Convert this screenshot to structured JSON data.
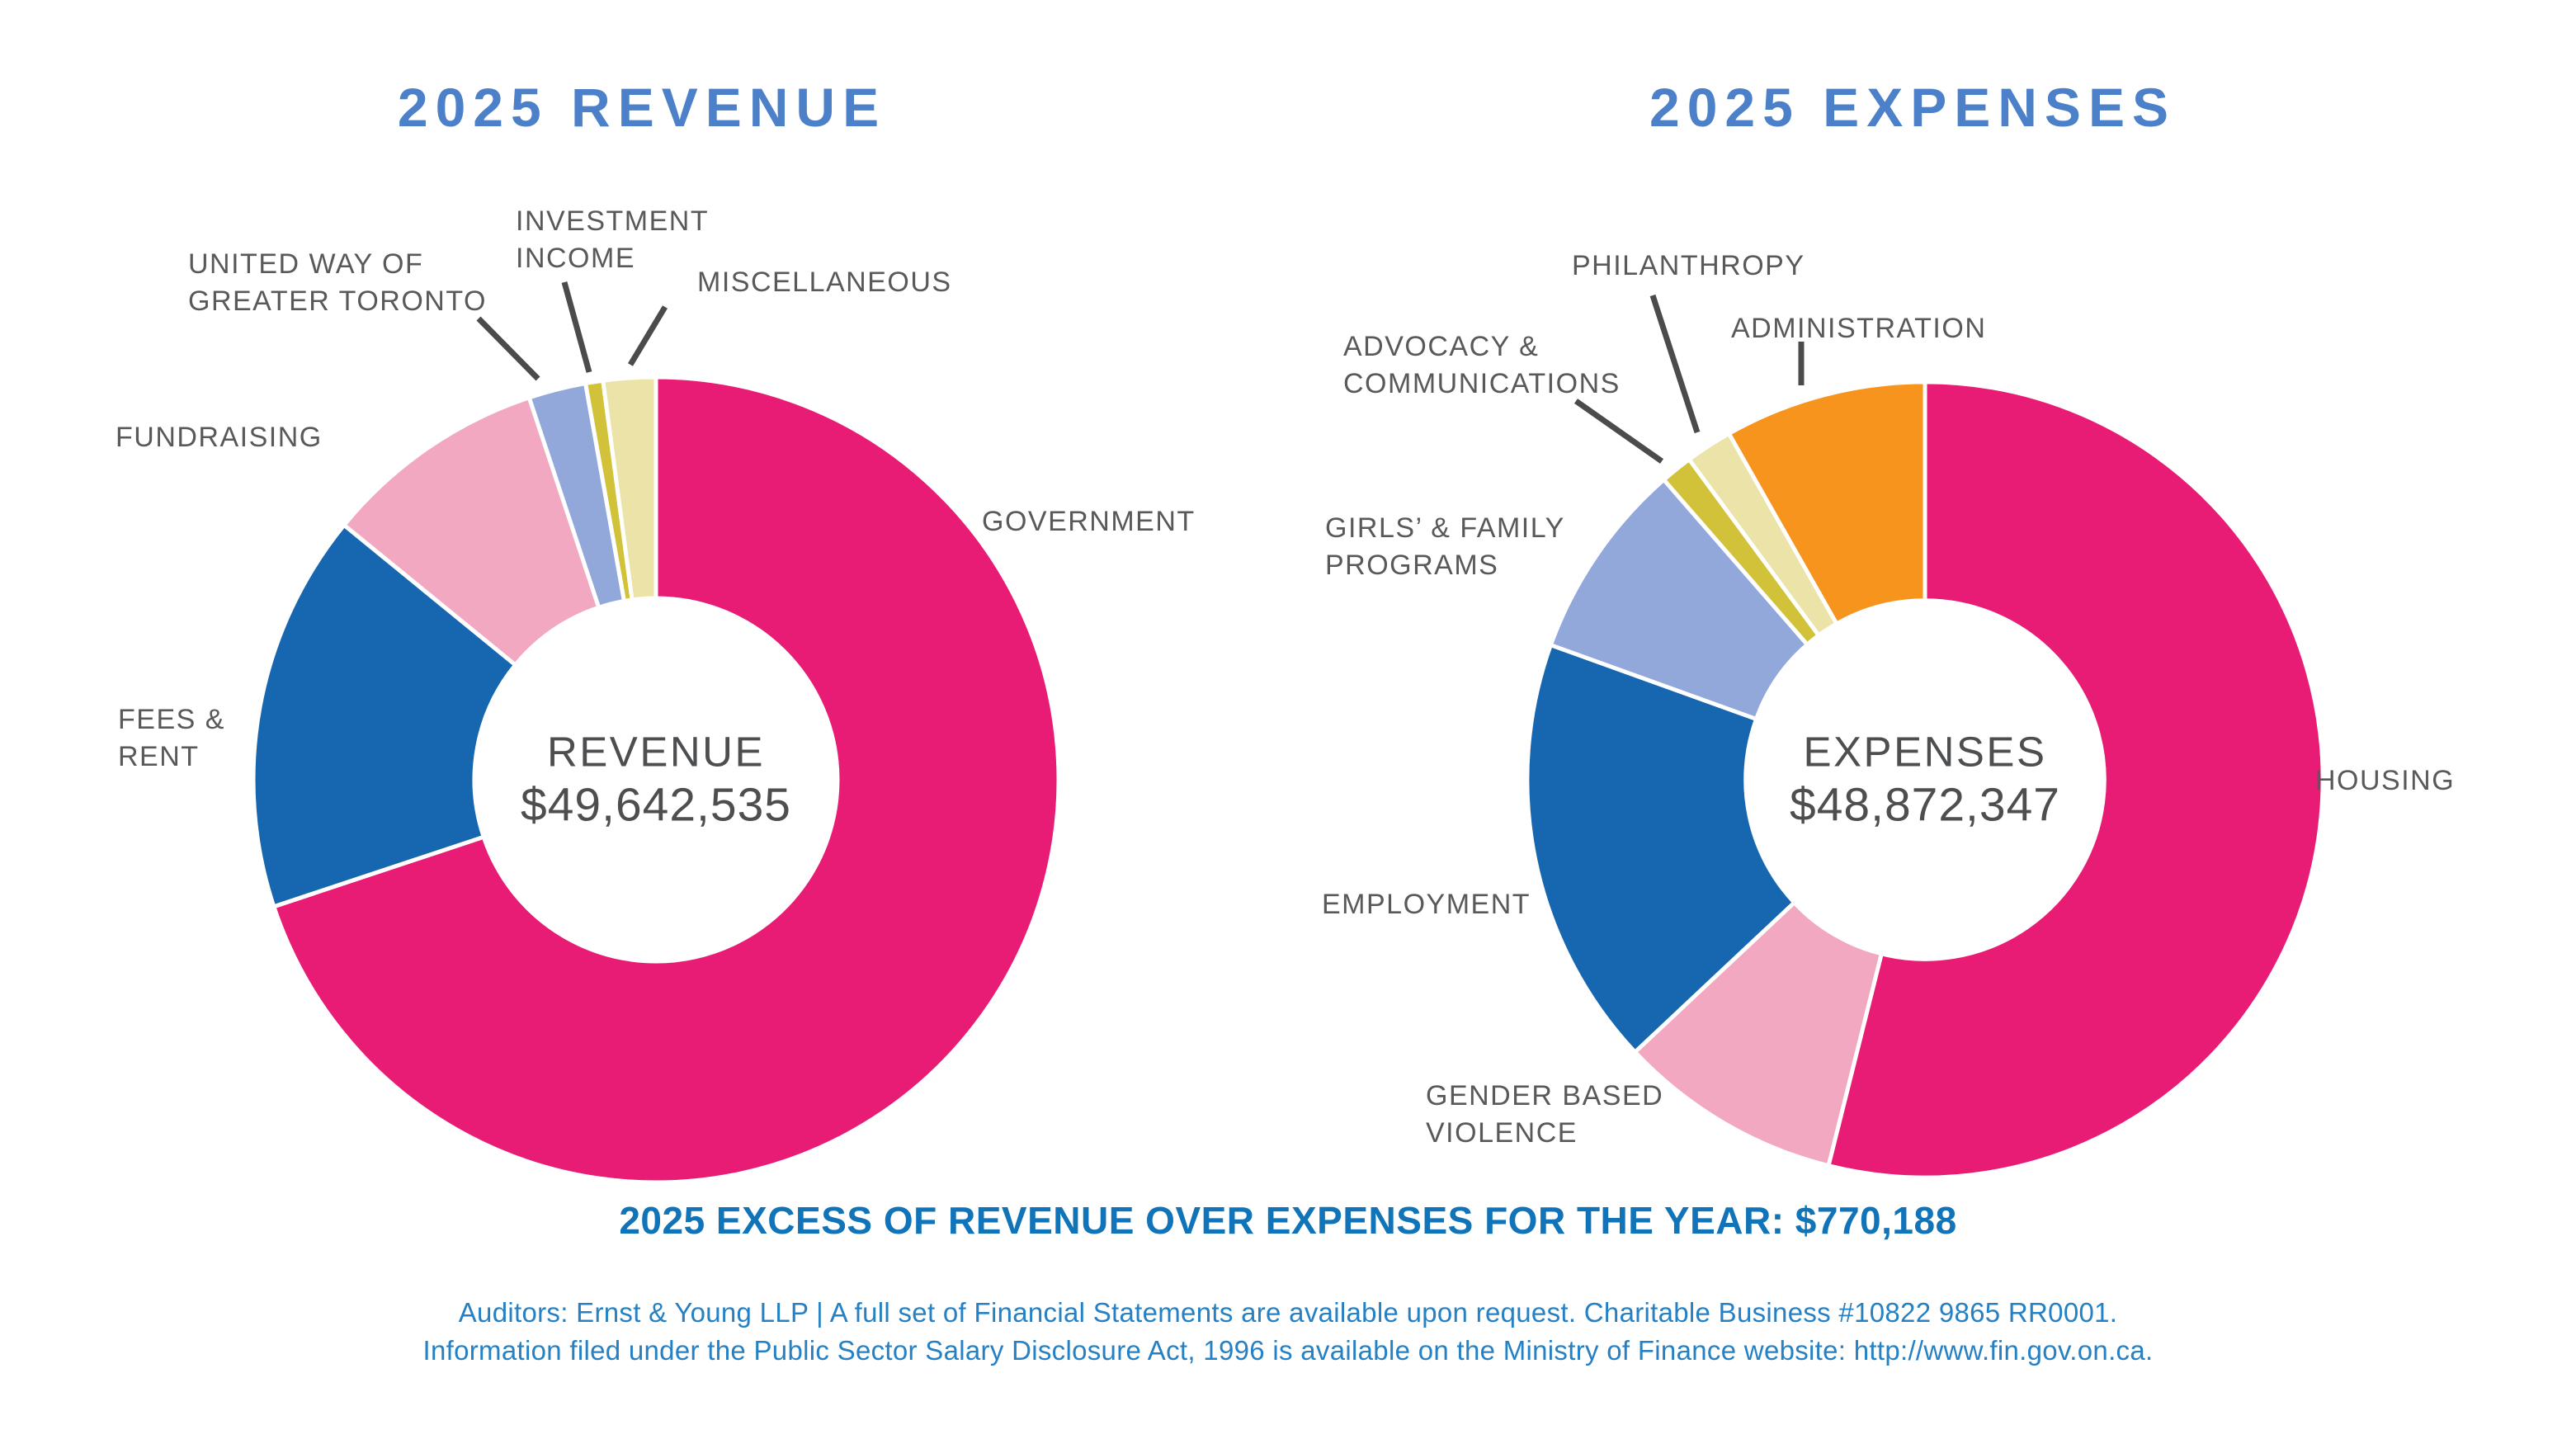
{
  "page": {
    "background": "#FFFFFF"
  },
  "colors": {
    "title_blue": "#4C80C8",
    "footer_bold_blue": "#1173B8",
    "footer_light_blue": "#2581C4",
    "label_gray": "#58595B",
    "center_text_gray": "#4D4E50",
    "leader_line_gray": "#4A4B4D",
    "magenta": "#E81C75",
    "dark_blue": "#1666B0",
    "light_pink": "#F3A8C1",
    "periwinkle": "#92A8DB",
    "mustard": "#D2C23A",
    "pale_yellow": "#EBE3A8",
    "orange": "#F7941E"
  },
  "chart_data": [
    {
      "type": "pie",
      "style": "donut",
      "title": "2025 REVENUE",
      "center_label": "REVENUE",
      "center_value": "$49,642,535",
      "total_text": "$49,642,535",
      "legend_position": "outside-callouts",
      "slices": [
        {
          "id": "government",
          "label": "GOVERNMENT",
          "percent": 69.9,
          "color": "#E81C75"
        },
        {
          "id": "fees-rent",
          "label": "FEES &\nRENT",
          "percent": 16.0,
          "color": "#1666B0"
        },
        {
          "id": "fundraising",
          "label": "FUNDRAISING",
          "percent": 9.0,
          "color": "#F3A8C1"
        },
        {
          "id": "united-way",
          "label": "UNITED WAY OF\nGREATER TORONTO",
          "percent": 2.3,
          "color": "#92A8DB"
        },
        {
          "id": "investment",
          "label": "INVESTMENT\nINCOME",
          "percent": 0.7,
          "color": "#D2C23A"
        },
        {
          "id": "miscellaneous",
          "label": "MISCELLANEOUS",
          "percent": 2.1,
          "color": "#EBE3A8"
        }
      ]
    },
    {
      "type": "pie",
      "style": "donut",
      "title": "2025 EXPENSES",
      "center_label": "EXPENSES",
      "center_value": "$48,872,347",
      "total_text": "$48,872,347",
      "legend_position": "outside-callouts",
      "slices": [
        {
          "id": "housing",
          "label": "HOUSING",
          "percent": 53.9,
          "color": "#E81C75"
        },
        {
          "id": "gbv",
          "label": "GENDER BASED\nVIOLENCE",
          "percent": 9.1,
          "color": "#F3A8C1"
        },
        {
          "id": "employment",
          "label": "EMPLOYMENT",
          "percent": 17.5,
          "color": "#1666B0"
        },
        {
          "id": "girls-family",
          "label": "GIRLS’ & FAMILY\nPROGRAMS",
          "percent": 8.1,
          "color": "#92A8DB"
        },
        {
          "id": "advocacy",
          "label": "ADVOCACY &\nCOMMUNICATIONS",
          "percent": 1.3,
          "color": "#D2C23A"
        },
        {
          "id": "philanthropy",
          "label": "PHILANTHROPY",
          "percent": 1.9,
          "color": "#EBE3A8"
        },
        {
          "id": "administration",
          "label": "ADMINISTRATION",
          "percent": 8.2,
          "color": "#F7941E"
        }
      ]
    }
  ],
  "footer": {
    "summary": "2025 EXCESS OF REVENUE OVER EXPENSES FOR THE YEAR: $770,188",
    "line1": "Auditors: Ernst & Young LLP | A full set of Financial Statements are available upon request. Charitable Business #10822 9865 RR0001.",
    "line2": "Information filed under the Public Sector Salary Disclosure Act, 1996 is available on the Ministry of Finance website: http://www.fin.gov.on.ca."
  }
}
